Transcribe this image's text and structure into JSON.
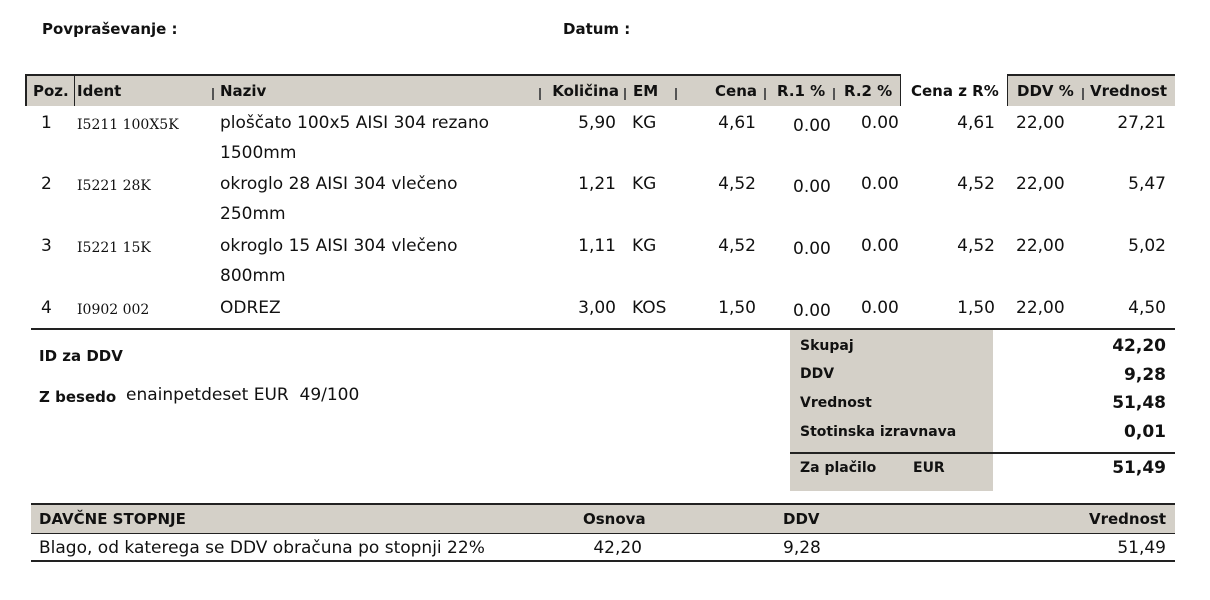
{
  "header": {
    "inquiry_label": "Povpraševanje :",
    "date_label": "Datum :"
  },
  "table": {
    "columns": [
      "Poz.",
      "Ident",
      "Naziv",
      "Količina",
      "EM",
      "Cena",
      "R.1 %",
      "R.2 %",
      "Cena z R%",
      "DDV %",
      "Vrednost"
    ],
    "rows": [
      {
        "poz": "1",
        "ident": "I5211 100X5K",
        "naziv1": "ploščato 100x5 AISI 304 rezano",
        "naziv2": "1500mm",
        "kolicina": "5,90",
        "em": "KG",
        "cena": "4,61",
        "r1": "0.00",
        "r2": "0.00",
        "cena_r": "4,61",
        "ddv": "22,00",
        "vrednost": "27,21"
      },
      {
        "poz": "2",
        "ident": "I5221 28K",
        "naziv1": "okroglo 28 AISI 304 vlečeno",
        "naziv2": "250mm",
        "kolicina": "1,21",
        "em": "KG",
        "cena": "4,52",
        "r1": "0.00",
        "r2": "0.00",
        "cena_r": "4,52",
        "ddv": "22,00",
        "vrednost": "5,47"
      },
      {
        "poz": "3",
        "ident": "I5221 15K",
        "naziv1": "okroglo 15 AISI 304 vlečeno",
        "naziv2": "800mm",
        "kolicina": "1,11",
        "em": "KG",
        "cena": "4,52",
        "r1": "0.00",
        "r2": "0.00",
        "cena_r": "4,52",
        "ddv": "22,00",
        "vrednost": "5,02"
      },
      {
        "poz": "4",
        "ident": "I0902 002",
        "naziv1": "ODREZ",
        "naziv2": "",
        "kolicina": "3,00",
        "em": "KOS",
        "cena": "1,50",
        "r1": "0.00",
        "r2": "0.00",
        "cena_r": "1,50",
        "ddv": "22,00",
        "vrednost": "4,50"
      }
    ]
  },
  "info": {
    "vat_id_label": "ID za DDV",
    "in_words_label": "Z besedo",
    "in_words_value": "enainpetdeset EUR  49/100"
  },
  "totals": {
    "subtotal_label": "Skupaj",
    "subtotal": "42,20",
    "vat_label": "DDV",
    "vat": "9,28",
    "value_label": "Vrednost",
    "value": "51,48",
    "rounding_label": "Stotinska izravnava",
    "rounding": "0,01",
    "payable_label": "Za plačilo",
    "currency": "EUR",
    "payable": "51,49"
  },
  "tax_rates": {
    "headers": {
      "title": "DAVČNE STOPNJE",
      "base": "Osnova",
      "vat": "DDV",
      "value": "Vrednost"
    },
    "row": {
      "desc": "Blago, od katerega se DDV obračuna po stopnji 22%",
      "base": "42,20",
      "vat": "9,28",
      "value": "51,49"
    }
  },
  "colors": {
    "header_bg": "#d4d0c8",
    "line": "#222222"
  }
}
